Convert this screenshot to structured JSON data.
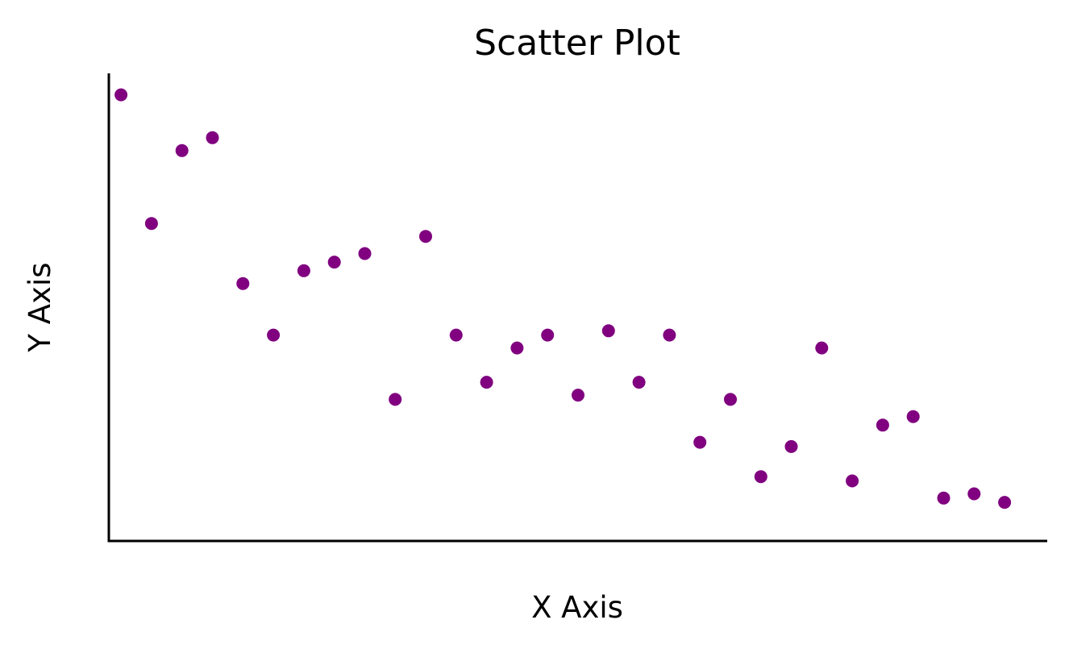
{
  "chart_data": {
    "type": "scatter",
    "title": "Scatter Plot",
    "xlabel": "X Axis",
    "ylabel": "Y Axis",
    "x_ticks_shown": false,
    "y_ticks_shown": false,
    "grid": false,
    "legend": "none",
    "spines": [
      "left",
      "bottom"
    ],
    "marker_color": "#800080",
    "xlim": [
      -0.4,
      30.4
    ],
    "ylim": [
      -0.04,
      1.05
    ],
    "series": [
      {
        "x": [
          0,
          1,
          2,
          3,
          4,
          5,
          6,
          7,
          8,
          9,
          10,
          11,
          12,
          13,
          14,
          15,
          16,
          17,
          18,
          19,
          20,
          21,
          22,
          23,
          24,
          25,
          26,
          27,
          28,
          29
        ],
        "y": [
          1.0,
          0.7,
          0.87,
          0.9,
          0.56,
          0.44,
          0.59,
          0.61,
          0.63,
          0.29,
          0.67,
          0.44,
          0.33,
          0.41,
          0.44,
          0.3,
          0.45,
          0.33,
          0.44,
          0.19,
          0.29,
          0.11,
          0.18,
          0.41,
          0.1,
          0.23,
          0.25,
          0.06,
          0.07,
          0.05
        ]
      }
    ]
  }
}
